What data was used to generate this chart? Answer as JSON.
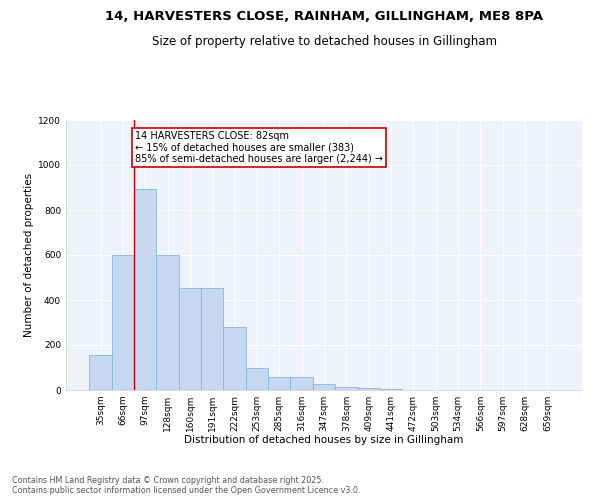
{
  "title_line1": "14, HARVESTERS CLOSE, RAINHAM, GILLINGHAM, ME8 8PA",
  "title_line2": "Size of property relative to detached houses in Gillingham",
  "xlabel": "Distribution of detached houses by size in Gillingham",
  "ylabel": "Number of detached properties",
  "bar_values": [
    155,
    600,
    895,
    600,
    455,
    455,
    280,
    100,
    60,
    60,
    25,
    15,
    8,
    3,
    0,
    0,
    0,
    0,
    0,
    0,
    0
  ],
  "categories": [
    "35sqm",
    "66sqm",
    "97sqm",
    "128sqm",
    "160sqm",
    "191sqm",
    "222sqm",
    "253sqm",
    "285sqm",
    "316sqm",
    "347sqm",
    "378sqm",
    "409sqm",
    "441sqm",
    "472sqm",
    "503sqm",
    "534sqm",
    "566sqm",
    "597sqm",
    "628sqm",
    "659sqm"
  ],
  "bar_color": "#c5d8f0",
  "bar_edgecolor": "#7aadd4",
  "vline_color": "#cc0000",
  "annotation_text": "14 HARVESTERS CLOSE: 82sqm\n← 15% of detached houses are smaller (383)\n85% of semi-detached houses are larger (2,244) →",
  "annotation_box_edgecolor": "#cc0000",
  "annotation_box_facecolor": "white",
  "ylim": [
    0,
    1200
  ],
  "yticks": [
    0,
    200,
    400,
    600,
    800,
    1000,
    1200
  ],
  "background_color": "#eef2fa",
  "footer_line1": "Contains HM Land Registry data © Crown copyright and database right 2025.",
  "footer_line2": "Contains public sector information licensed under the Open Government Licence v3.0.",
  "title_fontsize": 9.5,
  "subtitle_fontsize": 8.5,
  "tick_fontsize": 6.5,
  "xlabel_fontsize": 7.5,
  "ylabel_fontsize": 7.5,
  "annotation_fontsize": 7,
  "footer_fontsize": 5.8
}
